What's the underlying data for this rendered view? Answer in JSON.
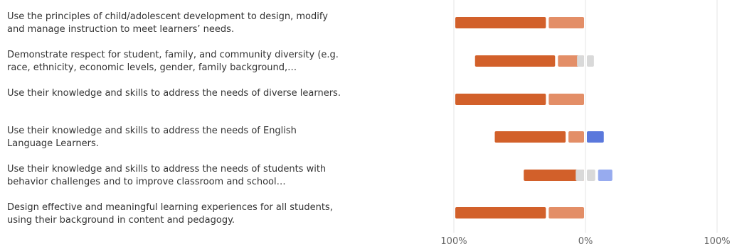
{
  "chart_data": {
    "type": "bar",
    "orientation": "horizontal",
    "stacked": "diverging",
    "categories": [
      "Use the principles of child/adolescent development to design, modify and manage instruction to meet learners’ needs.",
      "Demonstrate respect for student, family, and community diversity (e.g. race, ethnicity, economic levels, gender, family background,…",
      "Use their knowledge and skills to address the needs of diverse learners.",
      "Use their knowledge and skills to address the needs of English Language Learners.",
      "Use their knowledge and skills to address the needs of students with behavior challenges and to improve classroom and school…",
      "Design effective and meaningful learning experiences for all students, using their background in content and pedagogy."
    ],
    "series": [
      {
        "color": "#d2602a",
        "side": "negative",
        "values": [
          71,
          63,
          71,
          56,
          48,
          71
        ]
      },
      {
        "color": "#e38e67",
        "side": "negative",
        "values": [
          29,
          22,
          29,
          14,
          0,
          29
        ]
      },
      {
        "color": "#d9d9d9",
        "side": "neutral",
        "values": [
          0,
          15,
          0,
          0,
          17,
          0
        ]
      },
      {
        "color": "#5a78dc",
        "side": "positive",
        "values": [
          0,
          0,
          0,
          15,
          0,
          0
        ]
      },
      {
        "color": "#97abef",
        "side": "positive",
        "values": [
          0,
          0,
          0,
          0,
          13,
          0
        ]
      }
    ],
    "xlim": [
      -100,
      100
    ],
    "xtick_labels": [
      "100%",
      "0%",
      "100%"
    ],
    "grid": true,
    "legend": "none"
  }
}
